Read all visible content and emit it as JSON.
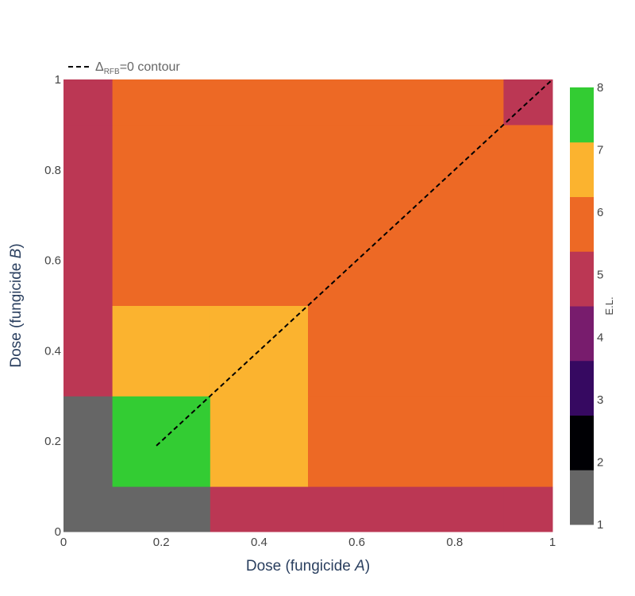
{
  "chart_data": {
    "type": "heatmap",
    "xlabel_prefix": "Dose (fungicide ",
    "xlabel_var": "A",
    "xlabel_suffix": ")",
    "ylabel_prefix": "Dose (fungicide ",
    "ylabel_var": "B",
    "ylabel_suffix": ")",
    "xlim": [
      0,
      1
    ],
    "ylim": [
      0,
      1
    ],
    "xticks": [
      0,
      0.2,
      0.4,
      0.6,
      0.8,
      1
    ],
    "xtick_labels": [
      "0",
      "0.2",
      "0.4",
      "0.6",
      "0.8",
      "1"
    ],
    "yticks": [
      0,
      0.2,
      0.4,
      0.6,
      0.8,
      1
    ],
    "ytick_labels": [
      "0",
      "0.2",
      "0.4",
      "0.6",
      "0.8",
      "1"
    ],
    "x_edges": [
      0,
      0.1,
      0.3,
      0.5,
      0.9,
      1.0
    ],
    "y_edges": [
      0,
      0.1,
      0.3,
      0.5,
      0.9,
      1.0
    ],
    "z": [
      [
        1,
        1,
        5,
        5,
        5
      ],
      [
        1,
        8,
        7,
        6,
        6
      ],
      [
        5,
        7,
        7,
        6,
        6
      ],
      [
        5,
        6,
        6,
        6,
        6
      ],
      [
        5,
        6,
        6,
        6,
        5
      ]
    ],
    "colorscale": {
      "1": "#666666",
      "2": "#000004",
      "3": "#360961",
      "4": "#781c6d",
      "5": "#bb3754",
      "6": "#ed6925",
      "7": "#fbb32f",
      "8": "#33cc33"
    },
    "colorbar": {
      "title": "E.L.",
      "ticks": [
        1,
        2,
        3,
        4,
        5,
        6,
        7,
        8
      ],
      "tick_labels": [
        "1",
        "2",
        "3",
        "4",
        "5",
        "6",
        "7",
        "8"
      ],
      "range": [
        1,
        8
      ]
    },
    "contour_line": {
      "name_prefix": "Δ",
      "name_sub": "RFB",
      "name_suffix": "=0 contour",
      "x": [
        0.19,
        1.0
      ],
      "y": [
        0.19,
        1.0
      ],
      "color": "#000000",
      "dash": "dash"
    },
    "legend_position": "top-left"
  }
}
